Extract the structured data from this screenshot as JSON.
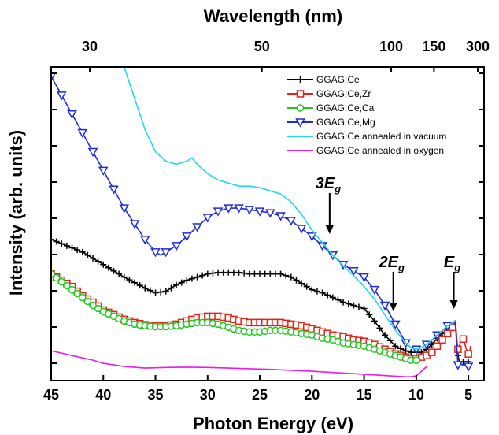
{
  "chart_data": {
    "type": "line",
    "xlabel": "Photon Energy (eV)",
    "ylabel": "Intensity (arb. units)",
    "top_xlabel": "Wavelength (nm)",
    "xlim": [
      45,
      3.5
    ],
    "ylim": [
      0,
      100
    ],
    "x_ticks": [
      45,
      40,
      35,
      30,
      25,
      20,
      15,
      10,
      5
    ],
    "x_tick_labels": [
      "45",
      "40",
      "35",
      "30",
      "25",
      "20",
      "15",
      "10",
      "5"
    ],
    "top_ticks": [
      {
        "label": "30",
        "energy": 41.3
      },
      {
        "label": "50",
        "energy": 24.8
      },
      {
        "label": "100",
        "energy": 12.4
      },
      {
        "label": "150",
        "energy": 8.3
      },
      {
        "label": "300",
        "energy": 4.1
      }
    ],
    "legend_position": "top-right",
    "annotations": [
      {
        "base": "3E",
        "sub": "g",
        "x": 18.3
      },
      {
        "base": "2E",
        "sub": "g",
        "x": 12.2
      },
      {
        "base": "E",
        "sub": "g",
        "x": 6.4
      }
    ],
    "series": [
      {
        "name": "GGAG:Ce",
        "color": "#000000",
        "marker": "plus",
        "x": [
          45,
          42,
          40,
          38,
          36,
          35,
          34,
          33,
          32,
          31,
          30,
          29,
          28,
          27,
          26,
          25,
          24,
          23,
          22,
          21,
          20,
          19,
          18,
          17,
          16,
          15,
          14,
          13,
          12,
          11,
          10.5,
          10,
          9.5,
          9,
          8.5,
          8,
          7.5,
          7,
          6.5,
          6.3,
          6.2,
          6.1,
          6.0,
          5.9,
          5.8,
          5.6,
          5.4,
          5.2,
          5.0,
          4.9
        ],
        "y": [
          45,
          41,
          37,
          33,
          29.5,
          28,
          28.5,
          30.5,
          32,
          33,
          34,
          34.5,
          34.5,
          34.5,
          34,
          34,
          34,
          34,
          33,
          31,
          29,
          28,
          26.5,
          25,
          24,
          23,
          19,
          14.5,
          11,
          9.5,
          9,
          9,
          9,
          10,
          11.5,
          13.5,
          15,
          16.5,
          17.5,
          18.5,
          17,
          12,
          8,
          6.5,
          6,
          6,
          6,
          6,
          6,
          6
        ]
      },
      {
        "name": "GGAG:Ce,Zr",
        "color": "#e2231a",
        "marker": "square",
        "x": [
          45,
          44,
          43,
          42,
          41,
          40,
          39,
          38,
          37,
          36,
          35,
          34,
          33,
          32,
          31,
          30,
          29,
          28,
          27,
          26,
          25,
          24,
          23,
          22,
          21,
          20,
          19,
          18,
          17,
          16,
          15,
          14,
          13,
          12,
          11,
          10.5,
          10,
          9.5,
          9,
          8.5,
          8,
          7.5,
          7,
          6.5,
          6.3,
          6.2,
          6.1,
          6.0,
          5.9,
          5.8,
          5.6,
          5.4,
          5.2,
          5.0,
          4.9,
          4.8
        ],
        "y": [
          34,
          32,
          30,
          27,
          25,
          22.5,
          21,
          19.5,
          18.5,
          17.8,
          17.5,
          17.5,
          18,
          19,
          20,
          20.5,
          20.5,
          20,
          19,
          18.5,
          18.5,
          18.5,
          18.5,
          18,
          17.5,
          16.5,
          15.5,
          14.5,
          14,
          13,
          12.5,
          11.5,
          10,
          8.5,
          7.5,
          7,
          7,
          7.5,
          8,
          9,
          11,
          13,
          15,
          17,
          18.5,
          17,
          13,
          10,
          10.5,
          12,
          14,
          12.5,
          10,
          8.5,
          8,
          11
        ]
      },
      {
        "name": "GGAG:Ce,Ca",
        "color": "#20c820",
        "marker": "circle",
        "x": [
          45,
          44,
          43,
          42,
          41,
          40,
          39,
          38,
          37,
          36,
          35,
          34,
          33,
          32,
          31,
          30,
          29,
          28,
          27,
          26,
          25,
          24,
          23,
          22,
          21,
          20,
          19,
          18,
          17,
          16,
          15,
          14,
          13,
          12,
          11,
          10.5,
          10
        ],
        "y": [
          34,
          31.5,
          29,
          26.5,
          24,
          22,
          20.5,
          19,
          18,
          17.5,
          17.2,
          17.2,
          17.5,
          18,
          18.5,
          18.5,
          18,
          17,
          16,
          15.5,
          15.5,
          16,
          16,
          15.5,
          15,
          14.5,
          13.5,
          13,
          12,
          11.5,
          11,
          10,
          9,
          8,
          7,
          6.5,
          6.5
        ]
      },
      {
        "name": "GGAG:Ce,Mg",
        "color": "#1f2bd6",
        "marker": "triangle-down",
        "x": [
          45,
          44,
          43,
          42,
          41,
          40,
          39,
          38,
          37,
          36,
          35,
          34.5,
          34,
          33,
          32,
          31,
          30,
          29,
          28,
          27,
          26,
          25,
          24,
          23,
          22,
          21,
          20,
          19,
          18,
          17,
          16,
          15,
          14,
          13,
          12,
          11,
          10.5,
          10,
          9.5,
          9,
          8.5,
          8,
          7.5,
          7,
          6.5,
          6.3,
          6.2,
          6.1,
          6.0,
          5.9,
          5.8,
          5.6,
          5.4,
          5.2,
          5.0
        ],
        "y": [
          97,
          91,
          85,
          79,
          73,
          67,
          61,
          55,
          50,
          45,
          41,
          40,
          41,
          43,
          46,
          49,
          52,
          54,
          55,
          55,
          54.5,
          54,
          53.5,
          52.5,
          51,
          48.5,
          46,
          43,
          40,
          37,
          35,
          33,
          29,
          24,
          18,
          12,
          10.5,
          10,
          10.5,
          11.5,
          13,
          14.5,
          16,
          17.5,
          18.5,
          19,
          16,
          10,
          5,
          5,
          5.5,
          5,
          5,
          4.5,
          4.5
        ]
      },
      {
        "name": "GGAG:Ce annealed in vacuum",
        "color": "#22d8e8",
        "marker": "none",
        "x": [
          38,
          37,
          36,
          35,
          34,
          33,
          32,
          31.5,
          31,
          30,
          29,
          28,
          27,
          26,
          25,
          24,
          23,
          22,
          21,
          20,
          19,
          18,
          17,
          16,
          15,
          14,
          13,
          12,
          11,
          10.5,
          10,
          9.5,
          9,
          8.5,
          8,
          7.5,
          7,
          6.5,
          6.3
        ],
        "y": [
          100,
          90,
          80,
          73,
          70,
          69,
          70,
          71,
          69,
          66,
          64,
          63,
          62,
          62,
          61.5,
          60.5,
          59.5,
          57,
          53,
          48,
          44,
          40,
          36.5,
          33.5,
          30,
          26,
          21,
          16,
          12,
          10.5,
          10,
          10.5,
          11.5,
          13,
          14.5,
          16,
          17.5,
          18.5,
          19
        ]
      },
      {
        "name": "GGAG:Ce annealed in oxygen",
        "color": "#e81be8",
        "marker": "none",
        "x": [
          45,
          43,
          41,
          40,
          38,
          36,
          34,
          32,
          30,
          28,
          26,
          24,
          22,
          20,
          18,
          16,
          14,
          12,
          11,
          10.5,
          10,
          9.5,
          9
        ],
        "y": [
          9.5,
          8,
          6.5,
          5.5,
          4.5,
          4,
          4.2,
          4.3,
          4.2,
          4,
          3.8,
          3.6,
          3.3,
          3,
          2.6,
          2.2,
          1.8,
          1.4,
          1.2,
          1.2,
          1.5,
          3,
          4.5
        ]
      }
    ]
  }
}
